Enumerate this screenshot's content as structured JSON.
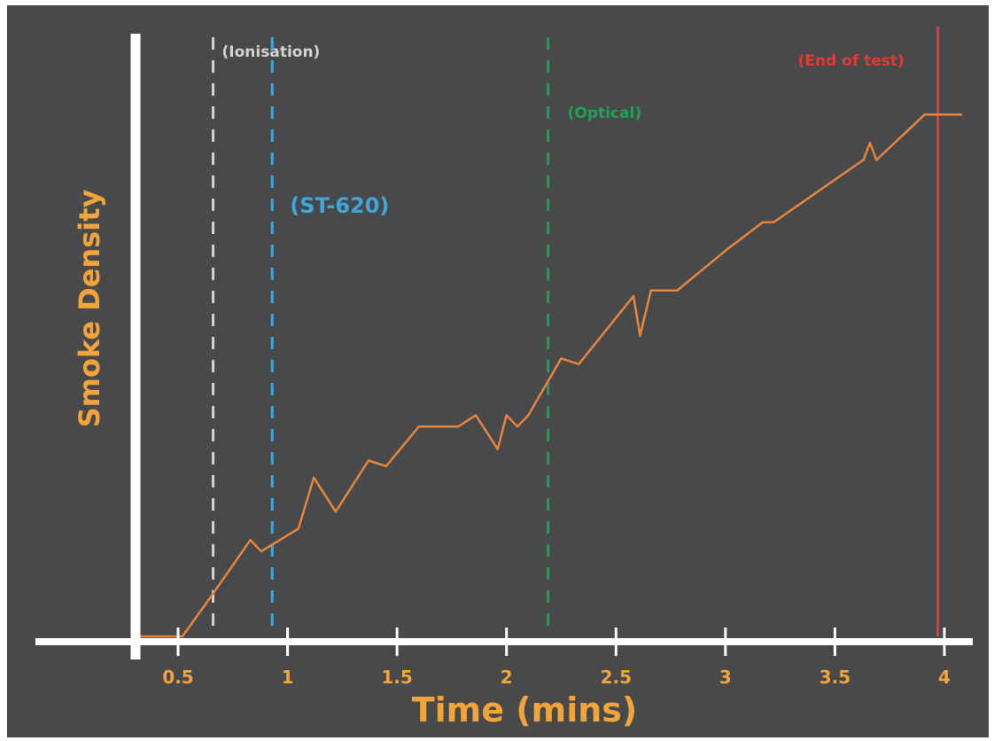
{
  "chart_data": {
    "type": "line",
    "title": "",
    "xlabel": "Time (mins)",
    "ylabel": "Smoke Density",
    "xlim": [
      0.35,
      4.1
    ],
    "ylim": [
      0,
      1
    ],
    "x_ticks": [
      0.5,
      1,
      1.5,
      2,
      2.5,
      3,
      3.5,
      4
    ],
    "x_tick_labels": [
      "0.5",
      "1",
      "1.5",
      "2",
      "2.5",
      "3",
      "3.5",
      "4"
    ],
    "grid": false,
    "legend": "none",
    "series": [
      {
        "color": "#e8853a",
        "x": [
          0.35,
          0.52,
          0.65,
          0.83,
          0.88,
          1.05,
          1.12,
          1.22,
          1.37,
          1.45,
          1.6,
          1.78,
          1.86,
          1.96,
          2.0,
          2.05,
          2.1,
          2.25,
          2.33,
          2.58,
          2.61,
          2.66,
          2.78,
          3.0,
          3.17,
          3.22,
          3.63,
          3.66,
          3.69,
          3.91,
          3.98
        ],
        "y": [
          0.0,
          0.0,
          0.07,
          0.17,
          0.15,
          0.19,
          0.28,
          0.22,
          0.31,
          0.3,
          0.37,
          0.37,
          0.39,
          0.33,
          0.39,
          0.37,
          0.39,
          0.49,
          0.48,
          0.6,
          0.53,
          0.61,
          0.61,
          0.68,
          0.73,
          0.73,
          0.84,
          0.87,
          0.84,
          0.92,
          0.92
        ]
      }
    ],
    "markers": [
      {
        "label": "(Ionisation)",
        "x": 0.66,
        "color": "#d2d2d2",
        "style": "dashed"
      },
      {
        "label": "(ST-620)",
        "x": 0.93,
        "color": "#3ea6d9",
        "style": "dashed"
      },
      {
        "label": "(Optical)",
        "x": 2.19,
        "color": "#22a055",
        "style": "dashed"
      },
      {
        "label": "(End of test)",
        "x": 3.97,
        "color": "#e53935",
        "style": "solid"
      }
    ],
    "colors": {
      "background": "#47494b",
      "axes": "#ffffff",
      "tick_labels": "#f2a33a",
      "axis_titles": "#f2a33a"
    }
  }
}
